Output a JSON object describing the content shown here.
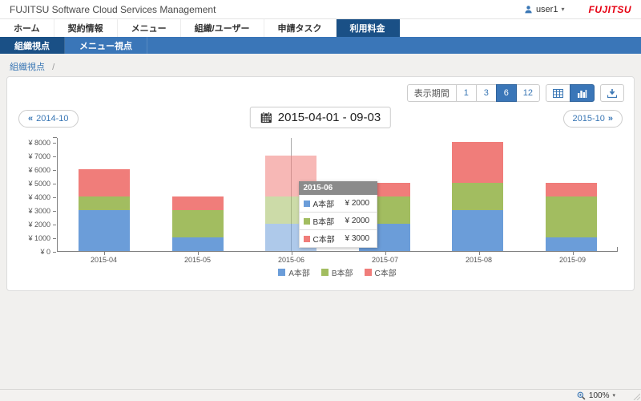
{
  "titlebar": {
    "title": "FUJITSU Software Cloud Services Management",
    "user": "user1",
    "caret": "▾",
    "brand": "FUJITSU"
  },
  "nav": {
    "tabs": [
      {
        "label": "ホーム",
        "active": false
      },
      {
        "label": "契約情報",
        "active": false
      },
      {
        "label": "メニュー",
        "active": false
      },
      {
        "label": "組織/ユーザー",
        "active": false
      },
      {
        "label": "申請タスク",
        "active": false
      },
      {
        "label": "利用料金",
        "active": true
      }
    ]
  },
  "subnav": {
    "items": [
      {
        "label": "組織視点",
        "active": true
      },
      {
        "label": "メニュー視点",
        "active": false
      }
    ]
  },
  "breadcrumb": {
    "current": "組織視点",
    "separator": "/"
  },
  "toolbar": {
    "period_label": "表示期間",
    "periods": [
      {
        "label": "1",
        "active": false
      },
      {
        "label": "3",
        "active": false
      },
      {
        "label": "6",
        "active": true
      },
      {
        "label": "12",
        "active": false
      }
    ],
    "view_icons": [
      {
        "name": "table-view-icon",
        "active": false
      },
      {
        "name": "bar-chart-view-icon",
        "active": true
      }
    ],
    "download_icon": "download-icon"
  },
  "date_nav": {
    "prev_arrow": "«",
    "prev_label": "2014-10",
    "range_label": "2015-04-01 - 09-03",
    "next_label": "2015-10",
    "next_arrow": "»"
  },
  "chart_data": {
    "type": "bar",
    "stacked": true,
    "categories": [
      "2015-04",
      "2015-05",
      "2015-06",
      "2015-07",
      "2015-08",
      "2015-09"
    ],
    "series": [
      {
        "name": "A本部",
        "color": "#6b9dd9",
        "values": [
          3000,
          1000,
          2000,
          2000,
          3000,
          1000
        ]
      },
      {
        "name": "B本部",
        "color": "#a2bd60",
        "values": [
          1000,
          2000,
          2000,
          2000,
          2000,
          3000
        ]
      },
      {
        "name": "C本部",
        "color": "#f07d7a",
        "values": [
          2000,
          1000,
          3000,
          1000,
          3000,
          1000
        ]
      }
    ],
    "currency_prefix": "¥",
    "yticks": [
      0,
      1000,
      2000,
      3000,
      4000,
      5000,
      6000,
      7000,
      8000
    ],
    "ylim": [
      0,
      8000
    ],
    "grid": false,
    "legend_position": "bottom",
    "hovered_category": "2015-06",
    "tooltip": {
      "title": "2015-06",
      "rows": [
        {
          "name": "A本部",
          "value": "¥ 2000",
          "color": "#6b9dd9"
        },
        {
          "name": "B本部",
          "value": "¥ 2000",
          "color": "#a2bd60"
        },
        {
          "name": "C本部",
          "value": "¥ 3000",
          "color": "#f07d7a"
        }
      ]
    }
  },
  "statusbar": {
    "zoom": "100%",
    "caret": "▾"
  }
}
